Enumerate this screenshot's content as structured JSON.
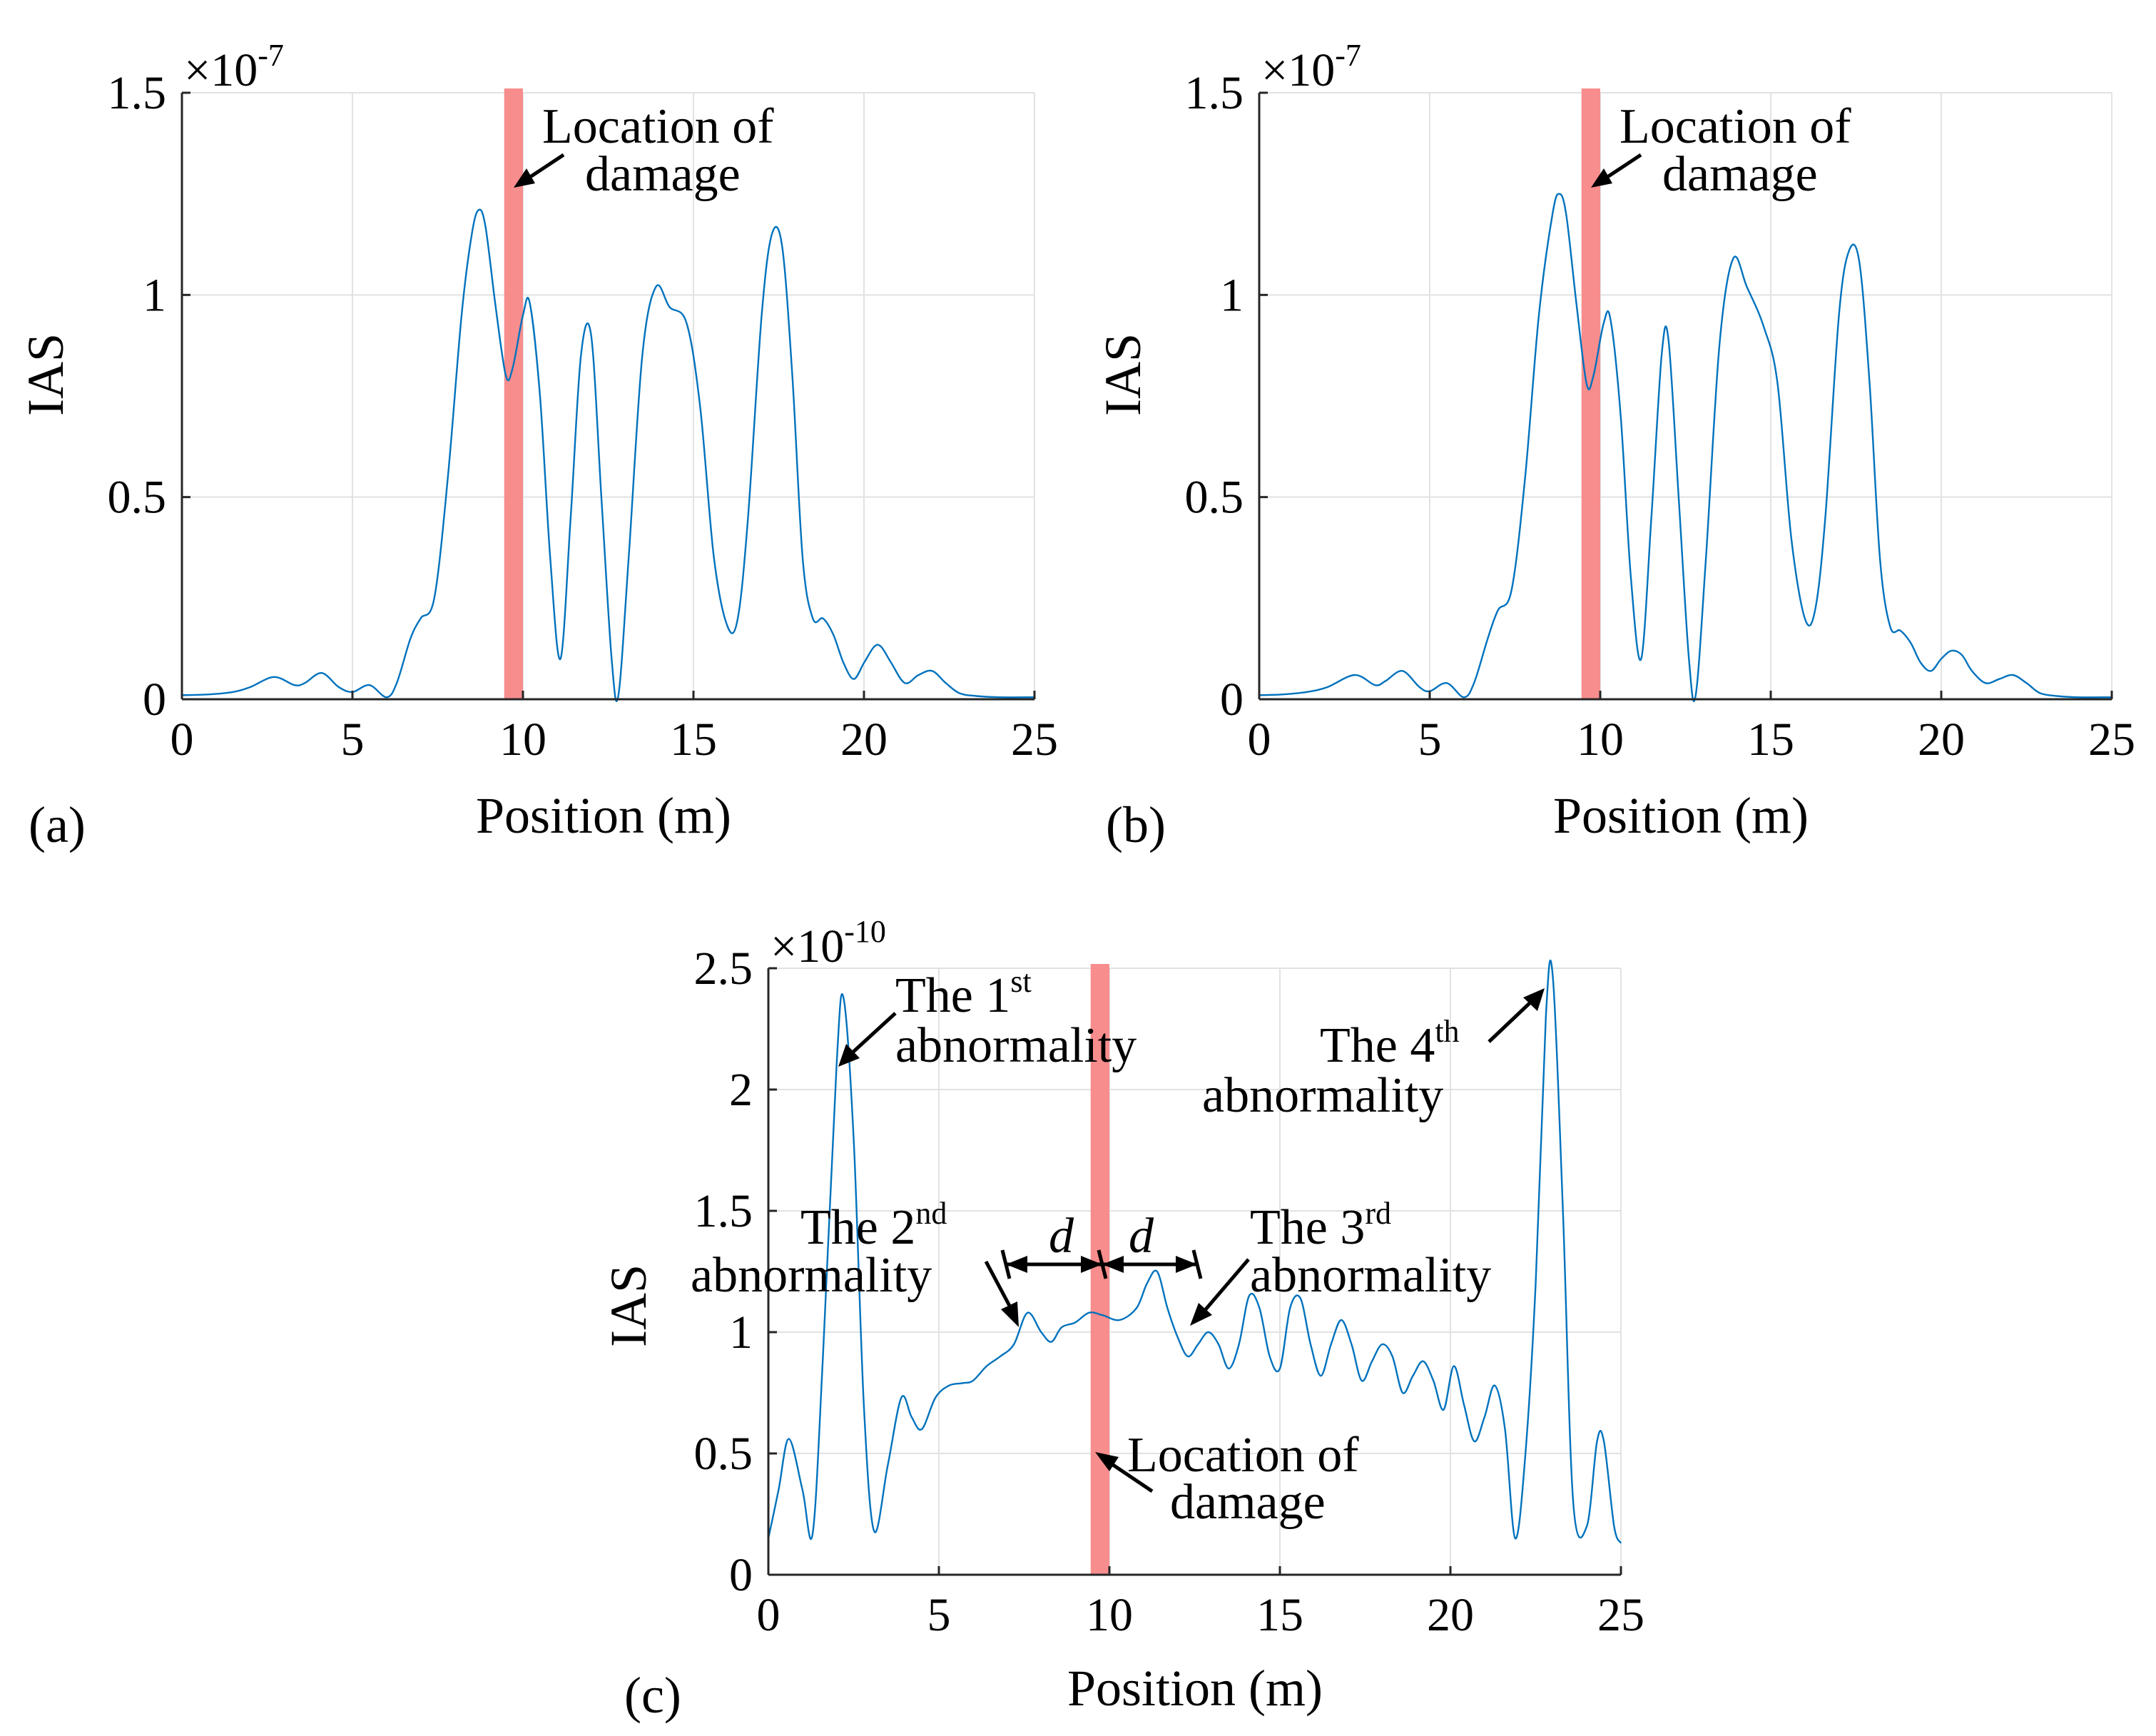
{
  "chart_data": [
    {
      "id": "a",
      "type": "line",
      "panel_label": "(a)",
      "xlabel": "Position (m)",
      "ylabel": "IAS",
      "y_exponent_label": "×10",
      "y_exponent_power": "-7",
      "xlim": [
        0,
        25
      ],
      "ylim": [
        0,
        1.5
      ],
      "xticks": [
        0,
        5,
        10,
        15,
        20,
        25
      ],
      "xtick_labels": [
        "0",
        "5",
        "10",
        "15",
        "20",
        "25"
      ],
      "yticks": [
        0,
        0.5,
        1,
        1.5
      ],
      "ytick_labels": [
        "0",
        "0.5",
        "1",
        "1.5"
      ],
      "grid": true,
      "damage_band": [
        9.45,
        10.0
      ],
      "damage_color": "#f88787",
      "line_color": "#0072bd",
      "series": [
        {
          "name": "IAS",
          "x": [
            0,
            0.8,
            1.5,
            2.0,
            2.7,
            3.3,
            3.6,
            4.1,
            4.6,
            5.0,
            5.5,
            6.0,
            6.3,
            6.7,
            7.0,
            7.4,
            7.8,
            8.2,
            8.5,
            8.7,
            8.9,
            9.2,
            9.5,
            9.7,
            10.0,
            10.2,
            10.5,
            10.8,
            11.1,
            11.4,
            11.7,
            12.0,
            12.3,
            12.6,
            12.8,
            13.1,
            13.5,
            13.9,
            14.3,
            14.8,
            15.2,
            15.6,
            16.0,
            16.3,
            16.6,
            17.0,
            17.3,
            17.6,
            17.9,
            18.2,
            18.5,
            18.8,
            19.1,
            19.4,
            19.7,
            20.0,
            20.3,
            20.5,
            20.8,
            21.2,
            21.6,
            22.0,
            22.4,
            22.8,
            23.3,
            24.0,
            25.0
          ],
          "y": [
            0.01,
            0.012,
            0.018,
            0.03,
            0.055,
            0.035,
            0.04,
            0.065,
            0.03,
            0.018,
            0.035,
            0.005,
            0.04,
            0.15,
            0.2,
            0.25,
            0.55,
            0.95,
            1.15,
            1.21,
            1.17,
            0.97,
            0.8,
            0.82,
            0.95,
            0.98,
            0.75,
            0.35,
            0.1,
            0.45,
            0.85,
            0.9,
            0.5,
            0.1,
            0.01,
            0.35,
            0.85,
            1.02,
            0.97,
            0.93,
            0.72,
            0.35,
            0.18,
            0.2,
            0.45,
            0.95,
            1.15,
            1.12,
            0.8,
            0.35,
            0.2,
            0.2,
            0.16,
            0.09,
            0.05,
            0.09,
            0.13,
            0.13,
            0.09,
            0.04,
            0.06,
            0.07,
            0.04,
            0.015,
            0.008,
            0.005,
            0.005
          ]
        }
      ],
      "annotations": [
        {
          "text_line1": "Location of",
          "text_line2": "damage"
        }
      ]
    },
    {
      "id": "b",
      "type": "line",
      "panel_label": "(b)",
      "xlabel": "Position (m)",
      "ylabel": "IAS",
      "y_exponent_label": "×10",
      "y_exponent_power": "-7",
      "xlim": [
        0,
        25
      ],
      "ylim": [
        0,
        1.5
      ],
      "xticks": [
        0,
        5,
        10,
        15,
        20,
        25
      ],
      "xtick_labels": [
        "0",
        "5",
        "10",
        "15",
        "20",
        "25"
      ],
      "yticks": [
        0,
        0.5,
        1,
        1.5
      ],
      "ytick_labels": [
        "0",
        "0.5",
        "1",
        "1.5"
      ],
      "grid": true,
      "damage_band": [
        9.45,
        10.0
      ],
      "damage_color": "#f88787",
      "line_color": "#0072bd",
      "series": [
        {
          "name": "IAS",
          "x": [
            0,
            0.7,
            1.4,
            2.0,
            2.8,
            3.4,
            3.7,
            4.2,
            4.7,
            5.0,
            5.5,
            6.0,
            6.3,
            6.7,
            7.0,
            7.4,
            7.8,
            8.2,
            8.6,
            8.8,
            9.0,
            9.3,
            9.6,
            9.8,
            10.1,
            10.3,
            10.6,
            10.9,
            11.2,
            11.5,
            11.8,
            12.0,
            12.3,
            12.6,
            12.8,
            13.1,
            13.5,
            13.9,
            14.3,
            14.8,
            15.2,
            15.6,
            16.0,
            16.3,
            16.6,
            17.0,
            17.3,
            17.6,
            17.9,
            18.2,
            18.5,
            18.8,
            19.1,
            19.4,
            19.7,
            20.0,
            20.3,
            20.6,
            20.9,
            21.3,
            21.7,
            22.1,
            22.5,
            22.9,
            23.4,
            24.0,
            25.0
          ],
          "y": [
            0.01,
            0.012,
            0.018,
            0.03,
            0.06,
            0.035,
            0.045,
            0.07,
            0.03,
            0.02,
            0.04,
            0.005,
            0.04,
            0.15,
            0.22,
            0.27,
            0.55,
            0.95,
            1.2,
            1.25,
            1.2,
            0.98,
            0.78,
            0.8,
            0.93,
            0.94,
            0.7,
            0.3,
            0.1,
            0.45,
            0.85,
            0.89,
            0.5,
            0.1,
            0.01,
            0.35,
            0.88,
            1.09,
            1.02,
            0.92,
            0.78,
            0.4,
            0.2,
            0.22,
            0.45,
            0.95,
            1.11,
            1.08,
            0.78,
            0.35,
            0.18,
            0.17,
            0.14,
            0.09,
            0.07,
            0.1,
            0.12,
            0.11,
            0.07,
            0.04,
            0.05,
            0.06,
            0.04,
            0.015,
            0.008,
            0.005,
            0.005
          ]
        }
      ],
      "annotations": [
        {
          "text_line1": "Location of",
          "text_line2": "damage"
        }
      ]
    },
    {
      "id": "c",
      "type": "line",
      "panel_label": "(c)",
      "xlabel": "Position (m)",
      "ylabel": "IAS",
      "y_exponent_label": "×10",
      "y_exponent_power": "-10",
      "xlim": [
        0,
        25
      ],
      "ylim": [
        0,
        2.5
      ],
      "xticks": [
        0,
        5,
        10,
        15,
        20,
        25
      ],
      "xtick_labels": [
        "0",
        "5",
        "10",
        "15",
        "20",
        "25"
      ],
      "yticks": [
        0,
        0.5,
        1,
        1.5,
        2,
        2.5
      ],
      "ytick_labels": [
        "0",
        "0.5",
        "1",
        "1.5",
        "2",
        "2.5"
      ],
      "grid": true,
      "damage_band": [
        9.45,
        10.0
      ],
      "damage_color": "#f88787",
      "line_color": "#0072bd",
      "series": [
        {
          "name": "IAS",
          "x": [
            0,
            0.3,
            0.6,
            1.0,
            1.3,
            1.6,
            2.0,
            2.2,
            2.5,
            2.8,
            3.1,
            3.5,
            3.9,
            4.2,
            4.5,
            4.9,
            5.3,
            5.7,
            6.0,
            6.4,
            6.8,
            7.2,
            7.6,
            8.0,
            8.3,
            8.6,
            9.0,
            9.4,
            9.8,
            10.3,
            10.8,
            11.1,
            11.4,
            11.7,
            12.0,
            12.3,
            12.6,
            12.9,
            13.2,
            13.5,
            13.8,
            14.1,
            14.4,
            14.7,
            15.0,
            15.3,
            15.6,
            15.9,
            16.2,
            16.5,
            16.8,
            17.1,
            17.4,
            17.7,
            18.0,
            18.3,
            18.6,
            18.9,
            19.2,
            19.5,
            19.8,
            20.1,
            20.4,
            20.7,
            21.0,
            21.3,
            21.6,
            21.9,
            22.2,
            22.5,
            22.8,
            23.0,
            23.3,
            23.6,
            24.0,
            24.3,
            24.5,
            24.8,
            25.0
          ],
          "y": [
            0.15,
            0.35,
            0.56,
            0.35,
            0.17,
            0.9,
            2.1,
            2.38,
            1.8,
            0.7,
            0.18,
            0.45,
            0.73,
            0.65,
            0.6,
            0.73,
            0.78,
            0.79,
            0.8,
            0.86,
            0.9,
            0.95,
            1.08,
            1.0,
            0.96,
            1.02,
            1.04,
            1.08,
            1.07,
            1.05,
            1.1,
            1.2,
            1.25,
            1.1,
            0.98,
            0.9,
            0.95,
            1.0,
            0.95,
            0.85,
            0.95,
            1.15,
            1.1,
            0.9,
            0.85,
            1.1,
            1.14,
            0.95,
            0.82,
            0.95,
            1.05,
            0.95,
            0.8,
            0.88,
            0.95,
            0.9,
            0.75,
            0.82,
            0.88,
            0.8,
            0.68,
            0.86,
            0.7,
            0.55,
            0.65,
            0.78,
            0.6,
            0.15,
            0.5,
            1.2,
            2.3,
            2.47,
            1.5,
            0.3,
            0.2,
            0.55,
            0.55,
            0.2,
            0.13
          ]
        }
      ],
      "annotations": [
        {
          "text_line1": "Location of",
          "text_line2": "damage"
        },
        {
          "prefix": "The 1",
          "sup": "st",
          "line2": "abnormality"
        },
        {
          "prefix": "The 2",
          "sup": "nd",
          "line2": "abnormality"
        },
        {
          "prefix": "The 3",
          "sup": "rd",
          "line2": "abnormality"
        },
        {
          "prefix": "The 4",
          "sup": "th",
          "line2": "abnormality"
        },
        {
          "text": "d"
        },
        {
          "text": "d"
        }
      ]
    }
  ]
}
